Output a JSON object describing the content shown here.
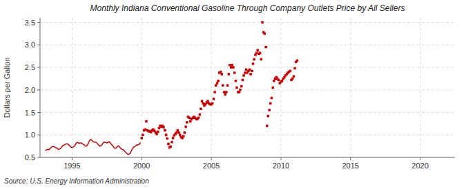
{
  "chart_data": {
    "type": "line",
    "title": "Monthly Indiana Conventional Gasoline Through Company Outlets Price by All Sellers",
    "ylabel": "Dollars per Gallon",
    "annotations": [
      "Source: U.S. Energy Information Administration"
    ],
    "xlim": [
      1992.7,
      2022.5
    ],
    "ylim": [
      0.5,
      3.6
    ],
    "xticks": [
      1995,
      2000,
      2005,
      2010,
      2015,
      2020
    ],
    "yticks": [
      0.5,
      {
        "value": 1.0,
        "label": "1.0"
      },
      1.5,
      {
        "value": 2.0,
        "label": "2.0"
      },
      2.5,
      {
        "value": 3.0,
        "label": "3.0"
      },
      3.5
    ],
    "grid": true,
    "series": [
      {
        "type": "line",
        "color": "#cc0000",
        "line_style": "solid",
        "x": [
          1993.08,
          1993.17,
          1993.25,
          1993.33,
          1993.42,
          1993.5,
          1993.58,
          1993.67,
          1993.75,
          1993.83,
          1993.92,
          1994.0,
          1994.08,
          1994.17,
          1994.25,
          1994.33,
          1994.42,
          1994.5,
          1994.58,
          1994.67,
          1994.75,
          1994.83,
          1994.92,
          1995.0,
          1995.08,
          1995.17,
          1995.25,
          1995.33,
          1995.42,
          1995.5,
          1995.58,
          1995.67,
          1995.75,
          1995.83,
          1995.92,
          1996.0,
          1996.08,
          1996.17,
          1996.25,
          1996.33,
          1996.42,
          1996.5,
          1996.58,
          1996.67,
          1996.75,
          1996.83,
          1996.92,
          1997.0,
          1997.08,
          1997.17,
          1997.25,
          1997.33,
          1997.42,
          1997.5,
          1997.58,
          1997.67,
          1997.75,
          1997.83,
          1997.92,
          1998.0,
          1998.08,
          1998.17,
          1998.25,
          1998.33,
          1998.42,
          1998.5,
          1998.58,
          1998.67,
          1998.75,
          1998.83,
          1998.92,
          1999.0,
          1999.08,
          1999.17,
          1999.25,
          1999.33,
          1999.42,
          1999.5,
          1999.58,
          1999.67,
          1999.75,
          1999.83,
          1999.92
        ],
        "values": [
          0.65,
          0.67,
          0.68,
          0.67,
          0.7,
          0.72,
          0.74,
          0.74,
          0.73,
          0.72,
          0.7,
          0.68,
          0.68,
          0.7,
          0.73,
          0.76,
          0.77,
          0.79,
          0.8,
          0.8,
          0.78,
          0.76,
          0.73,
          0.72,
          0.73,
          0.75,
          0.79,
          0.83,
          0.83,
          0.81,
          0.82,
          0.82,
          0.8,
          0.79,
          0.76,
          0.75,
          0.76,
          0.81,
          0.87,
          0.9,
          0.88,
          0.85,
          0.84,
          0.84,
          0.83,
          0.8,
          0.77,
          0.75,
          0.76,
          0.79,
          0.83,
          0.84,
          0.83,
          0.82,
          0.83,
          0.85,
          0.82,
          0.79,
          0.76,
          0.72,
          0.7,
          0.71,
          0.74,
          0.76,
          0.73,
          0.7,
          0.68,
          0.67,
          0.65,
          0.62,
          0.59,
          0.57,
          0.57,
          0.59,
          0.64,
          0.69,
          0.73,
          0.74,
          0.76,
          0.78,
          0.78,
          0.79,
          0.83
        ]
      },
      {
        "type": "scatter",
        "color": "#cc0000",
        "marker": "square",
        "x": [
          2000.0,
          2000.08,
          2000.17,
          2000.25,
          2000.33,
          2000.42,
          2000.5,
          2000.58,
          2000.67,
          2000.75,
          2000.83,
          2000.92,
          2001.0,
          2001.08,
          2001.17,
          2001.25,
          2001.33,
          2001.42,
          2001.5,
          2001.58,
          2001.67,
          2001.75,
          2001.83,
          2001.92,
          2002.0,
          2002.08,
          2002.17,
          2002.25,
          2002.33,
          2002.42,
          2002.5,
          2002.58,
          2002.67,
          2002.75,
          2002.83,
          2002.92,
          2003.0,
          2003.08,
          2003.17,
          2003.25,
          2003.33,
          2003.42,
          2003.5,
          2003.58,
          2003.67,
          2003.75,
          2003.83,
          2003.92,
          2004.0,
          2004.08,
          2004.17,
          2004.25,
          2004.33,
          2004.42,
          2004.5,
          2004.58,
          2004.67,
          2004.75,
          2004.83,
          2004.92,
          2005.0,
          2005.08,
          2005.17,
          2005.25,
          2005.33,
          2005.42,
          2005.5,
          2005.58,
          2005.67,
          2005.75,
          2005.83,
          2005.92,
          2006.0,
          2006.08,
          2006.17,
          2006.25,
          2006.33,
          2006.42,
          2006.5,
          2006.58,
          2006.67,
          2006.75,
          2006.83,
          2006.92,
          2007.0,
          2007.08,
          2007.17,
          2007.25,
          2007.33,
          2007.42,
          2007.5,
          2007.58,
          2007.67,
          2007.75,
          2007.83,
          2007.92,
          2008.0,
          2008.08,
          2008.17,
          2008.25,
          2008.33,
          2008.42,
          2008.5,
          2008.58,
          2008.67,
          2008.75,
          2008.83,
          2008.92,
          2009.0,
          2009.08,
          2009.17,
          2009.25,
          2009.33,
          2009.42,
          2009.5,
          2009.58,
          2009.67,
          2009.75,
          2009.83,
          2009.92,
          2010.0,
          2010.08,
          2010.17,
          2010.25,
          2010.33,
          2010.42,
          2010.5,
          2010.58,
          2010.67,
          2010.75,
          2010.83,
          2010.92,
          2011.0,
          2011.08,
          2011.17
        ],
        "values": [
          0.93,
          1.0,
          1.1,
          1.12,
          1.3,
          1.1,
          1.08,
          1.08,
          1.06,
          1.1,
          1.12,
          1.09,
          1.05,
          1.02,
          1.07,
          1.15,
          1.2,
          1.18,
          1.2,
          1.17,
          1.1,
          1.0,
          0.92,
          0.8,
          0.72,
          0.74,
          0.84,
          0.93,
          0.99,
          1.02,
          1.05,
          1.1,
          1.05,
          1.0,
          0.95,
          0.93,
          0.97,
          1.05,
          1.18,
          1.28,
          1.4,
          1.38,
          1.3,
          1.35,
          1.38,
          1.4,
          1.38,
          1.35,
          1.35,
          1.38,
          1.45,
          1.58,
          1.75,
          1.7,
          1.65,
          1.68,
          1.72,
          1.75,
          1.7,
          1.68,
          1.68,
          1.7,
          1.8,
          1.95,
          2.1,
          2.15,
          2.2,
          2.38,
          2.4,
          2.35,
          2.1,
          1.95,
          1.9,
          1.95,
          2.1,
          2.35,
          2.55,
          2.5,
          2.55,
          2.5,
          2.38,
          2.2,
          2.05,
          1.95,
          1.95,
          2.0,
          2.08,
          2.22,
          2.32,
          2.38,
          2.45,
          2.38,
          2.42,
          2.45,
          2.35,
          2.42,
          2.58,
          2.68,
          2.78,
          2.82,
          2.88,
          2.8,
          2.82,
          2.68,
          3.5,
          3.28,
          3.25,
          2.95,
          1.2,
          1.42,
          1.55,
          1.7,
          1.82,
          2.05,
          2.2,
          2.25,
          2.28,
          2.25,
          2.22,
          2.15,
          2.18,
          2.2,
          2.25,
          2.28,
          2.32,
          2.35,
          2.38,
          2.4,
          2.42,
          2.22,
          2.25,
          2.3,
          2.48,
          2.62,
          2.65
        ]
      }
    ]
  }
}
